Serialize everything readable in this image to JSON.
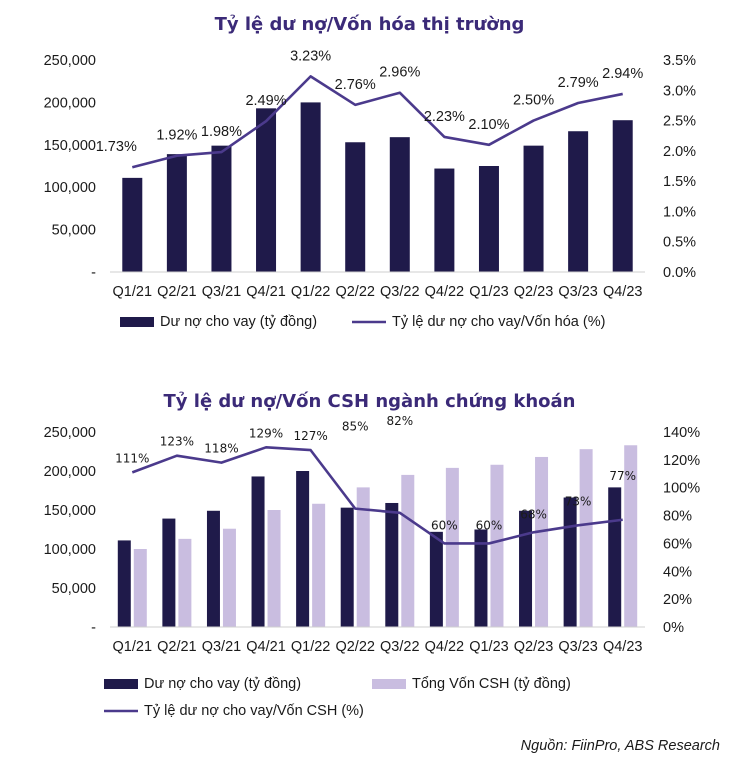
{
  "source": "Nguồn: FiinPro, ABS Research",
  "colors": {
    "bar_loans": "#1f1a4a",
    "bar_equity": "#c9bde0",
    "line": "#4b3a8c",
    "title": "#3b2a78"
  },
  "chart_data": [
    {
      "type": "bar",
      "title": "Tỷ lệ dư nợ/Vốn hóa thị trường",
      "categories": [
        "Q1/21",
        "Q2/21",
        "Q3/21",
        "Q4/21",
        "Q1/22",
        "Q2/22",
        "Q3/22",
        "Q4/22",
        "Q1/23",
        "Q2/23",
        "Q3/23",
        "Q4/23"
      ],
      "y_ticks": [
        "-",
        "50,000",
        "100,000",
        "150,000",
        "200,000",
        "250,000"
      ],
      "y2_ticks": [
        "0.0%",
        "0.5%",
        "1.0%",
        "1.5%",
        "2.0%",
        "2.5%",
        "3.0%",
        "3.5%"
      ],
      "ylim": [
        0,
        250000
      ],
      "y2lim": [
        0,
        3.5
      ],
      "series": [
        {
          "name": "Dư nợ cho vay (tỷ đồng)",
          "kind": "bar",
          "axis": "left",
          "values": [
            111000,
            139000,
            149000,
            193000,
            200000,
            153000,
            159000,
            122000,
            125000,
            149000,
            166000,
            179000
          ]
        },
        {
          "name": "Tỷ lệ dư nợ cho vay/Vốn hóa (%)",
          "kind": "line",
          "axis": "right",
          "values": [
            1.73,
            1.92,
            1.98,
            2.49,
            3.23,
            2.76,
            2.96,
            2.23,
            2.1,
            2.5,
            2.79,
            2.94
          ],
          "labels": [
            "1.73%",
            "1.92%",
            "1.98%",
            "2.49%",
            "3.23%",
            "2.76%",
            "2.96%",
            "2.23%",
            "2.10%",
            "2.50%",
            "2.79%",
            "2.94%"
          ]
        }
      ],
      "grid": false,
      "legend": "bottom"
    },
    {
      "type": "bar",
      "title": "Tỷ lệ dư nợ/Vốn CSH ngành chứng khoán",
      "categories": [
        "Q1/21",
        "Q2/21",
        "Q3/21",
        "Q4/21",
        "Q1/22",
        "Q2/22",
        "Q3/22",
        "Q4/22",
        "Q1/23",
        "Q2/23",
        "Q3/23",
        "Q4/23"
      ],
      "y_ticks": [
        "-",
        "50,000",
        "100,000",
        "150,000",
        "200,000",
        "250,000"
      ],
      "y2_ticks": [
        "0%",
        "20%",
        "40%",
        "60%",
        "80%",
        "100%",
        "120%",
        "140%"
      ],
      "ylim": [
        0,
        250000
      ],
      "y2lim": [
        0,
        140
      ],
      "series": [
        {
          "name": "Dư nợ cho vay (tỷ đồng)",
          "kind": "bar",
          "axis": "left",
          "values": [
            111000,
            139000,
            149000,
            193000,
            200000,
            153000,
            159000,
            122000,
            125000,
            149000,
            166000,
            179000
          ]
        },
        {
          "name": "Tổng Vốn CSH (tỷ đồng)",
          "kind": "bar",
          "axis": "left",
          "values": [
            100000,
            113000,
            126000,
            150000,
            158000,
            179000,
            195000,
            204000,
            208000,
            218000,
            228000,
            233000
          ]
        },
        {
          "name": "Tỷ lệ dư nợ cho vay/Vốn CSH (%)",
          "kind": "line",
          "axis": "right",
          "values": [
            111,
            123,
            118,
            129,
            127,
            85,
            82,
            60,
            60,
            68,
            73,
            77
          ],
          "labels": [
            "111%",
            "123%",
            "118%",
            "129%",
            "127%",
            "85%",
            "82%",
            "60%",
            "60%",
            "68%",
            "73%",
            "77%"
          ]
        }
      ],
      "grid": false,
      "legend": "bottom"
    }
  ]
}
